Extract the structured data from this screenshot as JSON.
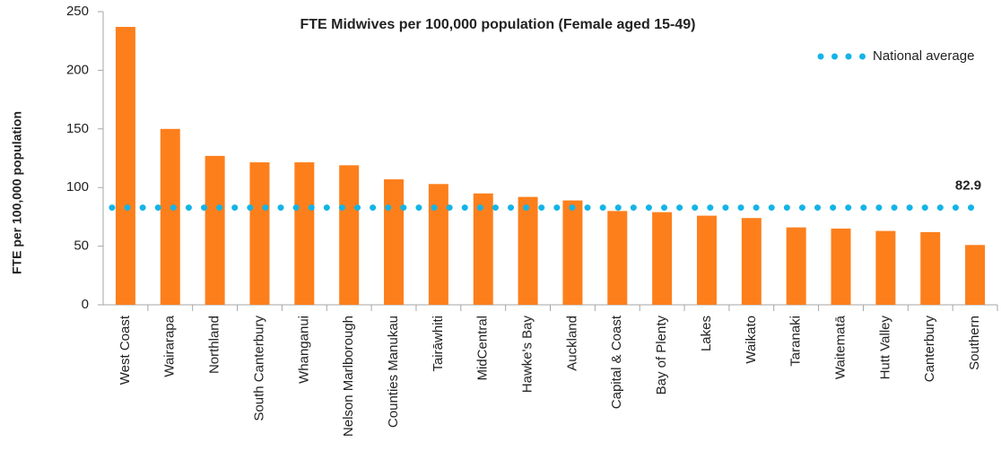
{
  "chart_data": {
    "type": "bar",
    "title": "FTE Midwives per 100,000 population (Female aged 15-49)",
    "y_label": "FTE per 100,000 population",
    "categories": [
      "West Coast",
      "Wairarapa",
      "Northland",
      "South Canterbury",
      "Whanganui",
      "Nelson Marlborough",
      "Counties Manukau",
      "Tairāwhiti",
      "MidCentral",
      "Hawke's Bay",
      "Auckland",
      "Capital & Coast",
      "Bay of Plenty",
      "Lakes",
      "Waikato",
      "Taranaki",
      "Waitematā",
      "Hutt Valley",
      "Canterbury",
      "Southern"
    ],
    "values": [
      237,
      150,
      127,
      121.5,
      121.5,
      119,
      107,
      103,
      95,
      92,
      89,
      80,
      79,
      76,
      74,
      66,
      65,
      63,
      62,
      51
    ],
    "color": "#fd7f1c",
    "average": {
      "name": "National average",
      "value": 82.9,
      "color": "#14b4e6"
    },
    "ylim": [
      0,
      250
    ],
    "yticks": [
      0,
      50,
      100,
      150,
      200,
      250
    ],
    "legend": "top-right"
  }
}
